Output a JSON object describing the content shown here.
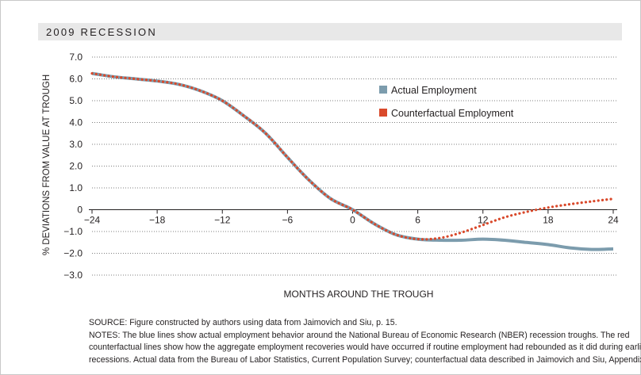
{
  "banner": {
    "title": "2009 RECESSION"
  },
  "colors": {
    "actual": "#7c9cad",
    "counterfactual": "#d9492b",
    "grid": "#555555",
    "banner_bg": "#e8e8e8"
  },
  "chart_data": {
    "type": "line",
    "title": "2009 RECESSION",
    "xlabel": "MONTHS AROUND THE TROUGH",
    "ylabel": "% DEVIATIONS FROM VALUE AT TROUGH",
    "xlim": [
      -24,
      24
    ],
    "ylim": [
      -3.0,
      7.0
    ],
    "x_ticks": [
      "−24",
      "−18",
      "−12",
      "−6",
      "0",
      "6",
      "12",
      "18",
      "24"
    ],
    "x_tick_values": [
      -24,
      -18,
      -12,
      -6,
      0,
      6,
      12,
      18,
      24
    ],
    "y_ticks": [
      "7.0",
      "6.0",
      "5.0",
      "4.0",
      "3.0",
      "2.0",
      "1.0",
      "0",
      "−1.0",
      "−2.0",
      "−3.0"
    ],
    "y_tick_values": [
      7,
      6,
      5,
      4,
      3,
      2,
      1,
      0,
      -1,
      -2,
      -3
    ],
    "grid": "dotted horizontal",
    "legend_position": "top-right",
    "x": [
      -24,
      -22,
      -20,
      -18,
      -16,
      -14,
      -12,
      -10,
      -8,
      -6,
      -4,
      -2,
      0,
      2,
      4,
      6,
      8,
      10,
      12,
      14,
      16,
      18,
      20,
      22,
      24
    ],
    "series": [
      {
        "name": "Actual Employment",
        "style": "solid",
        "values": [
          6.25,
          6.1,
          6.0,
          5.9,
          5.75,
          5.45,
          5.0,
          4.3,
          3.5,
          2.4,
          1.35,
          0.5,
          0.0,
          -0.65,
          -1.15,
          -1.35,
          -1.4,
          -1.4,
          -1.35,
          -1.4,
          -1.5,
          -1.6,
          -1.75,
          -1.82,
          -1.8
        ]
      },
      {
        "name": "Counterfactual Employment",
        "style": "dotted",
        "values": [
          6.25,
          6.1,
          6.0,
          5.9,
          5.75,
          5.45,
          5.0,
          4.3,
          3.5,
          2.4,
          1.35,
          0.5,
          0.0,
          -0.65,
          -1.15,
          -1.35,
          -1.3,
          -1.05,
          -0.7,
          -0.35,
          -0.1,
          0.1,
          0.25,
          0.38,
          0.5
        ]
      }
    ]
  },
  "notes": {
    "source": "SOURCE:  Figure constructed by authors using data from Jaimovich and Siu, p. 15.",
    "notes_line1": "NOTES:  The blue lines show actual employment behavior around the National Bureau of Economic Research (NBER) recession troughs.  The red",
    "notes_line2": "counterfactual lines show how the aggregate employment recoveries would have occurred if routine employment had rebounded as it did during earlier",
    "notes_line3": "recessions.  Actual data from the Bureau of Labor Statistics, Current Population Survey; counterfactual data described in Jaimovich and Siu, Appendix B."
  }
}
